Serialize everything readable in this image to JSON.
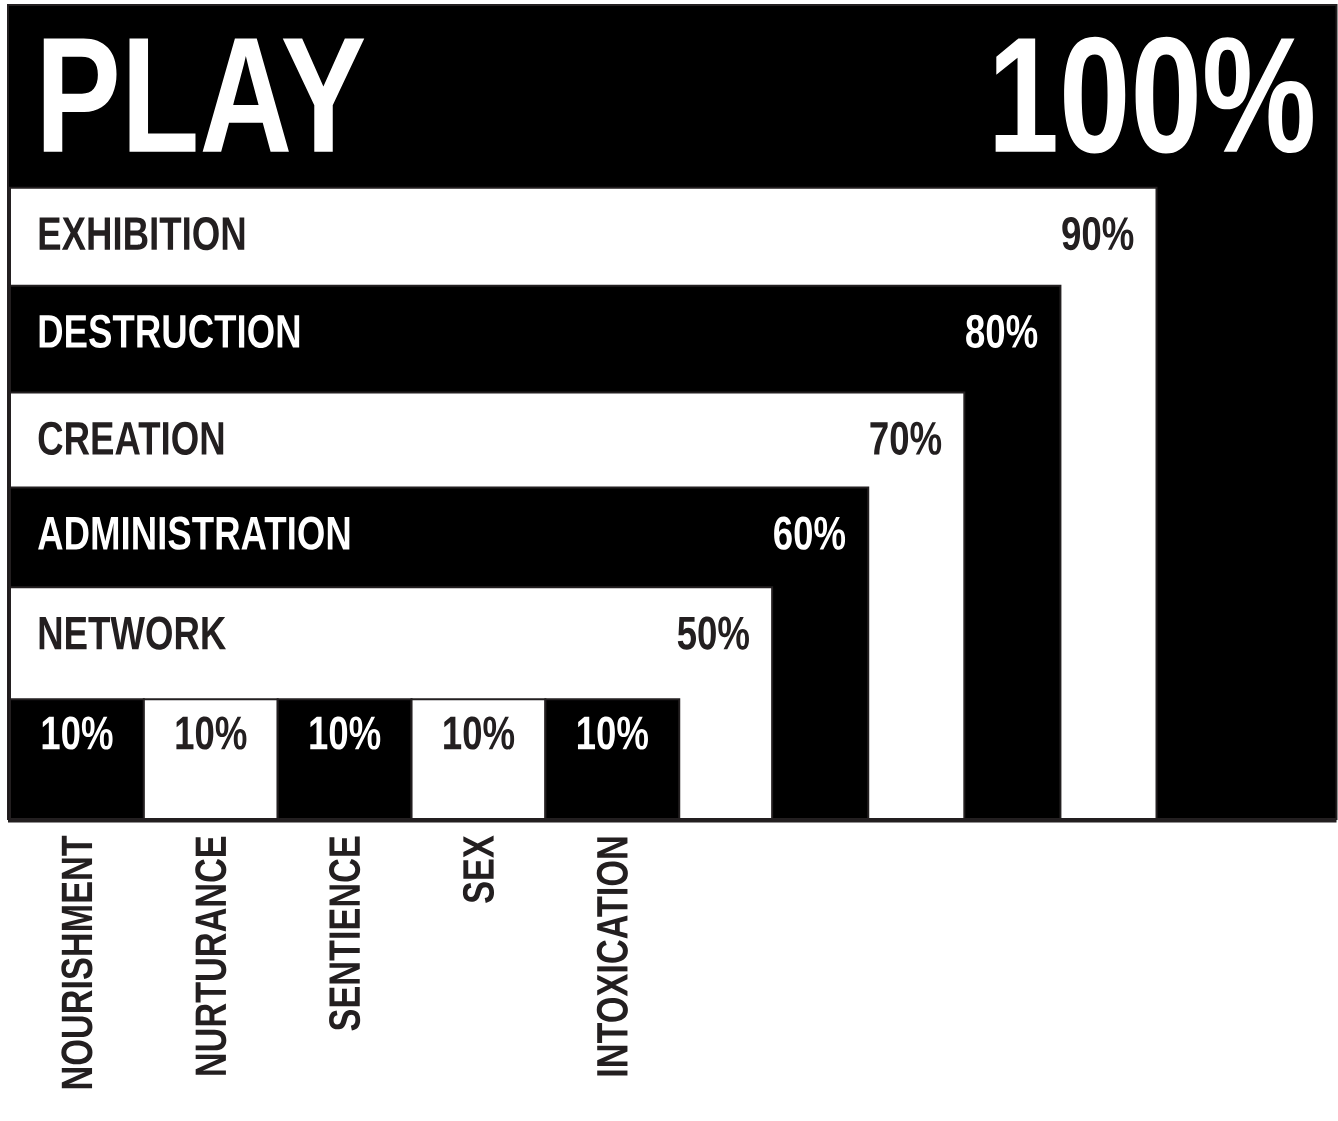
{
  "chart_data": {
    "type": "other",
    "categories": [
      "PLAY",
      "EXHIBITION",
      "DESTRUCTION",
      "CREATION",
      "ADMINISTRATION",
      "NETWORK",
      "NOURISHMENT",
      "NURTURANCE",
      "SENTIENCE",
      "SEX",
      "INTOXICATION"
    ],
    "values": [
      100,
      90,
      80,
      70,
      60,
      50,
      10,
      10,
      10,
      10,
      10
    ],
    "value_labels": [
      "100%",
      "90%",
      "80%",
      "70%",
      "60%",
      "50%",
      "10%",
      "10%",
      "10%",
      "10%",
      "10%"
    ],
    "colors": [
      "#000000",
      "#ffffff",
      "#000000",
      "#ffffff",
      "#000000",
      "#ffffff",
      "#000000",
      "#ffffff",
      "#000000",
      "#ffffff",
      "#000000"
    ]
  }
}
